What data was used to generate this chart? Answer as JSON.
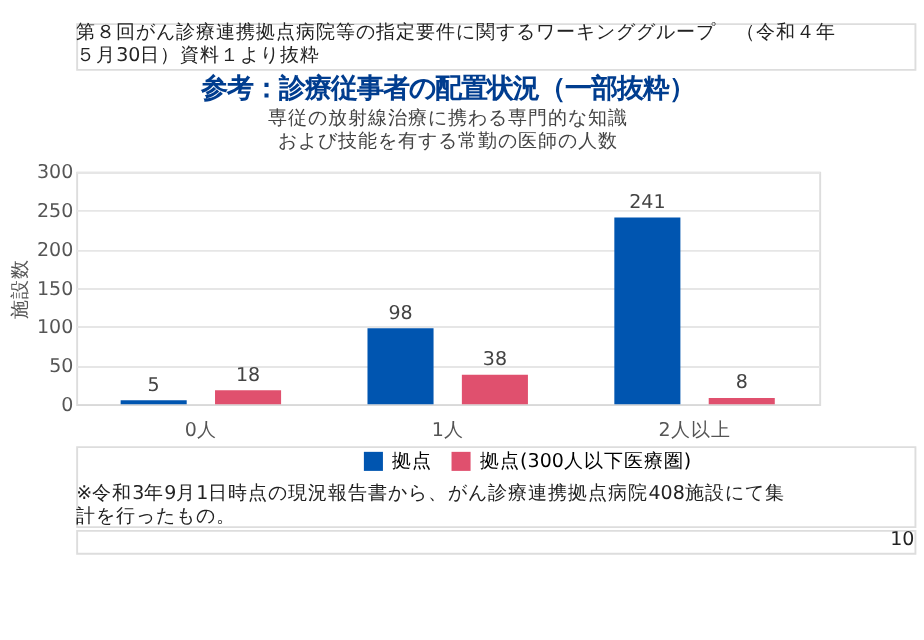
{
  "chart_data": {
    "type": "bar",
    "title": "参考：診療従事者の配置状況（一部抜粋）",
    "subtitle": "専従の放射線治療に携わる専門的な知識および技能を有する常勤の医師の人数",
    "ylabel": "施設数",
    "categories": [
      "0人",
      "1人",
      "2人以上"
    ],
    "series": [
      {
        "name": "拠点",
        "color": "#0055b0",
        "values": [
          5,
          98,
          241
        ]
      },
      {
        "name": "拠点(300人以下医療圏)",
        "color": "#e0506e",
        "values": [
          18,
          38,
          8
        ]
      }
    ],
    "ylim": [
      0,
      300
    ],
    "yticks": [
      0,
      50,
      100,
      150,
      200,
      250,
      300
    ],
    "grid": "y",
    "legend": "bottom",
    "data_labels": true,
    "annotations": [
      "第８回がん診療連携拠点病院等の指定要件に関するワーキンググループ　（令和４年５月30日）資料１より抜粋",
      "※令和3年9月1日時点の現況報告書から、がん診療連携拠点病院408施設にて集計を行ったもの。",
      "10"
    ]
  }
}
